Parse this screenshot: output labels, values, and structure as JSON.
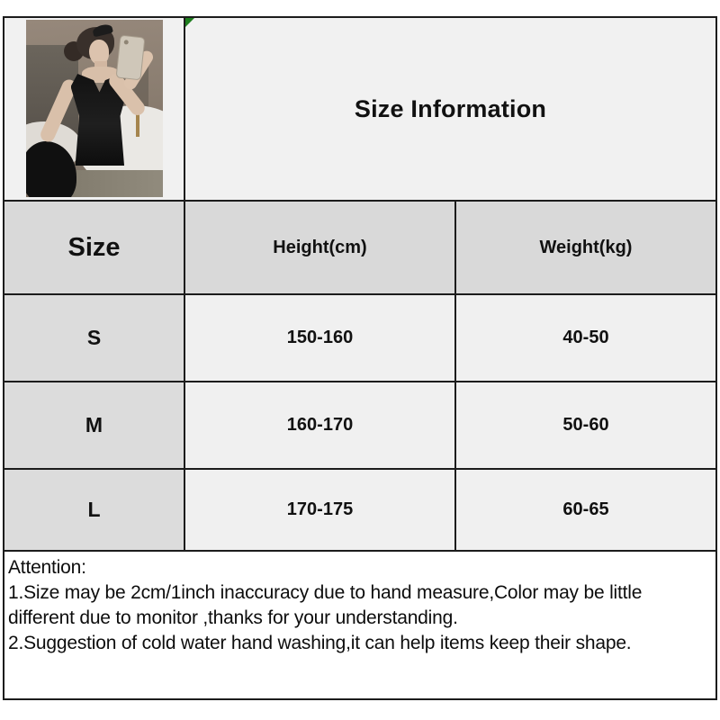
{
  "table": {
    "title": "Size Information",
    "columns": [
      "Size",
      "Height(cm)",
      "Weight(kg)"
    ],
    "rows": [
      {
        "size": "S",
        "height": "150-160",
        "weight": "40-50"
      },
      {
        "size": "M",
        "height": "160-170",
        "weight": "50-60"
      },
      {
        "size": "L",
        "height": "170-175",
        "weight": "60-65"
      }
    ]
  },
  "attention": {
    "lines": [
      "Attention:",
      "1.Size may be 2cm/1inch inaccuracy due to hand measure,Color may be little",
      "different due to monitor ,thanks for your understanding.",
      "2.Suggestion of cold water hand washing,it can help items keep their shape."
    ]
  },
  "photo": {
    "description": "model mirror selfie wearing black sleeveless tank top in bathroom"
  },
  "colors": {
    "grid_line": "#1c1c1c",
    "header_gray": "#d9d9d9",
    "size_column_gray": "#dcdcdc",
    "light_cell": "#f1f1f1",
    "data_cell": "#f0f0f0",
    "attention_bg": "#ffffff",
    "error_marker_green": "#1e7e1e"
  },
  "chart_data": {
    "type": "table",
    "title": "Size Information",
    "columns": [
      "Size",
      "Height(cm)",
      "Weight(kg)"
    ],
    "rows": [
      [
        "S",
        "150-160",
        "40-50"
      ],
      [
        "M",
        "160-170",
        "50-60"
      ],
      [
        "L",
        "170-175",
        "60-65"
      ]
    ],
    "notes": "Attention: 1.Size may be 2cm/1inch inaccuracy due to hand measure,Color may be little different due to monitor ,thanks for your understanding. 2.Suggestion of cold water hand washing,it can help items keep their shape."
  }
}
